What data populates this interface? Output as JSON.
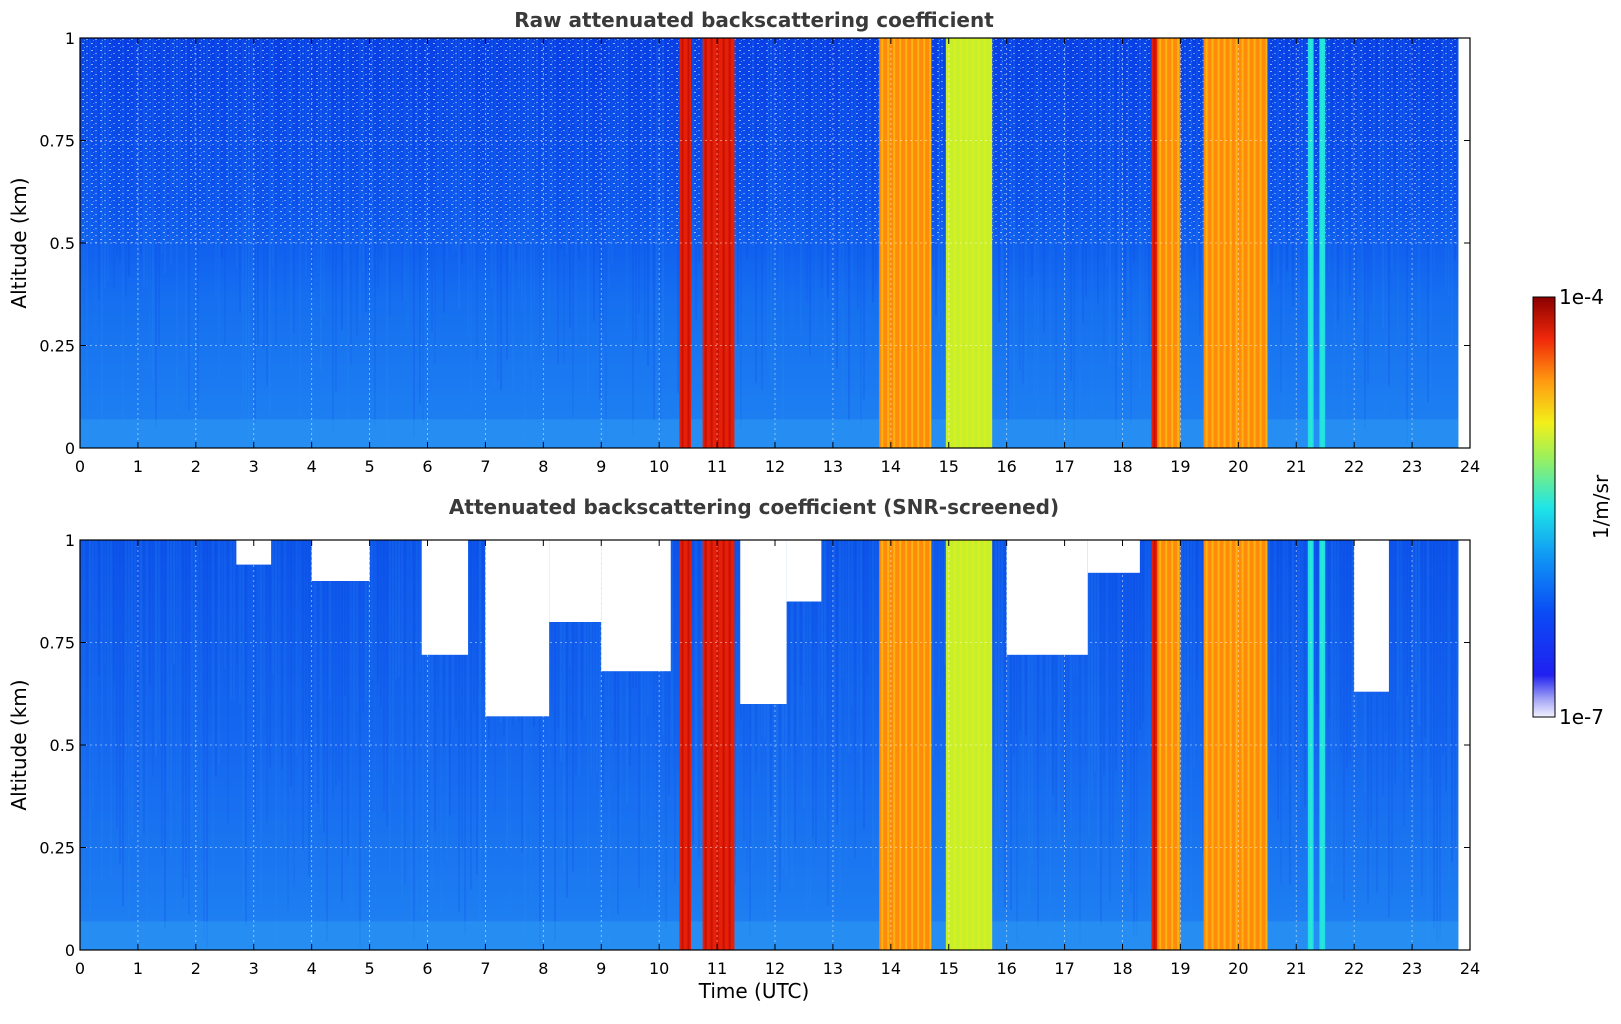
{
  "chart_data": [
    {
      "type": "heatmap",
      "title": "Raw attenuated backscattering coefficient",
      "xlabel": "",
      "ylabel": "Altitude (km)",
      "xlim": [
        0,
        24
      ],
      "ylim": [
        0,
        1
      ],
      "x_ticks": [
        "0",
        "1",
        "2",
        "3",
        "4",
        "5",
        "6",
        "7",
        "8",
        "9",
        "10",
        "11",
        "12",
        "13",
        "14",
        "15",
        "16",
        "17",
        "18",
        "19",
        "20",
        "21",
        "22",
        "23",
        "24"
      ],
      "y_ticks": [
        "0",
        "0.25",
        "0.5",
        "0.75",
        "1"
      ],
      "y_tick_values": [
        0,
        0.25,
        0.5,
        0.75,
        1
      ],
      "grid": true,
      "data_end_hour": 23.8,
      "clear_air_level": "~1e-6 near surface decreasing with altitude; noisy above 0.5 km",
      "cloud_bands": [
        {
          "start": 10.35,
          "end": 10.55,
          "level": "red"
        },
        {
          "start": 10.75,
          "end": 11.3,
          "level": "red"
        },
        {
          "start": 13.8,
          "end": 14.7,
          "level": "yellow-orange"
        },
        {
          "start": 14.95,
          "end": 15.75,
          "level": "yellow-green"
        },
        {
          "start": 18.5,
          "end": 18.6,
          "level": "red"
        },
        {
          "start": 18.6,
          "end": 19.0,
          "level": "yellow-orange"
        },
        {
          "start": 19.4,
          "end": 20.5,
          "level": "orange"
        },
        {
          "start": 21.2,
          "end": 21.3,
          "level": "cyan"
        },
        {
          "start": 21.4,
          "end": 21.5,
          "level": "cyan"
        }
      ]
    },
    {
      "type": "heatmap",
      "title": "Attenuated backscattering coefficient (SNR-screened)",
      "xlabel": "Time (UTC)",
      "ylabel": "Altitude (km)",
      "xlim": [
        0,
        24
      ],
      "ylim": [
        0,
        1
      ],
      "x_ticks": [
        "0",
        "1",
        "2",
        "3",
        "4",
        "5",
        "6",
        "7",
        "8",
        "9",
        "10",
        "11",
        "12",
        "13",
        "14",
        "15",
        "16",
        "17",
        "18",
        "19",
        "20",
        "21",
        "22",
        "23",
        "24"
      ],
      "y_ticks": [
        "0",
        "0.25",
        "0.5",
        "0.75",
        "1"
      ],
      "y_tick_values": [
        0,
        0.25,
        0.5,
        0.75,
        1
      ],
      "grid": true,
      "data_end_hour": 23.8,
      "screened_regions": [
        {
          "start": 2.7,
          "end": 3.3,
          "bottom": 0.94
        },
        {
          "start": 4.0,
          "end": 5.0,
          "bottom": 0.9
        },
        {
          "start": 5.9,
          "end": 6.7,
          "bottom": 0.72
        },
        {
          "start": 7.0,
          "end": 8.1,
          "bottom": 0.57
        },
        {
          "start": 8.1,
          "end": 9.0,
          "bottom": 0.8
        },
        {
          "start": 9.0,
          "end": 10.2,
          "bottom": 0.68
        },
        {
          "start": 11.4,
          "end": 12.2,
          "bottom": 0.6
        },
        {
          "start": 12.2,
          "end": 12.8,
          "bottom": 0.85
        },
        {
          "start": 16.0,
          "end": 17.4,
          "bottom": 0.72
        },
        {
          "start": 17.4,
          "end": 18.3,
          "bottom": 0.92
        },
        {
          "start": 22.0,
          "end": 22.6,
          "bottom": 0.63
        }
      ],
      "cloud_bands": [
        {
          "start": 10.35,
          "end": 10.55,
          "level": "red"
        },
        {
          "start": 10.75,
          "end": 11.3,
          "level": "red"
        },
        {
          "start": 13.8,
          "end": 14.7,
          "level": "yellow-orange"
        },
        {
          "start": 14.95,
          "end": 15.75,
          "level": "yellow-green"
        },
        {
          "start": 18.5,
          "end": 18.6,
          "level": "red"
        },
        {
          "start": 18.6,
          "end": 19.0,
          "level": "yellow-orange"
        },
        {
          "start": 19.4,
          "end": 20.5,
          "level": "orange"
        },
        {
          "start": 21.2,
          "end": 21.3,
          "level": "cyan"
        },
        {
          "start": 21.4,
          "end": 21.5,
          "level": "cyan"
        }
      ]
    }
  ],
  "colorbar": {
    "label": "1/m/sr",
    "min_label": "1e-7",
    "max_label": "1e-4",
    "scale": "log",
    "colormap": "jet"
  },
  "colors": {
    "clear_air_low": "#1e7cf2",
    "clear_air_mid": "#0d5ef0",
    "clear_air_high": "#0536e6",
    "red": "#e51f08",
    "dark_red": "#a00000",
    "orange": "#ff8a0c",
    "yellow": "#f4e81a",
    "yellow_green": "#c6f02a",
    "cyan": "#1fe0e6"
  }
}
